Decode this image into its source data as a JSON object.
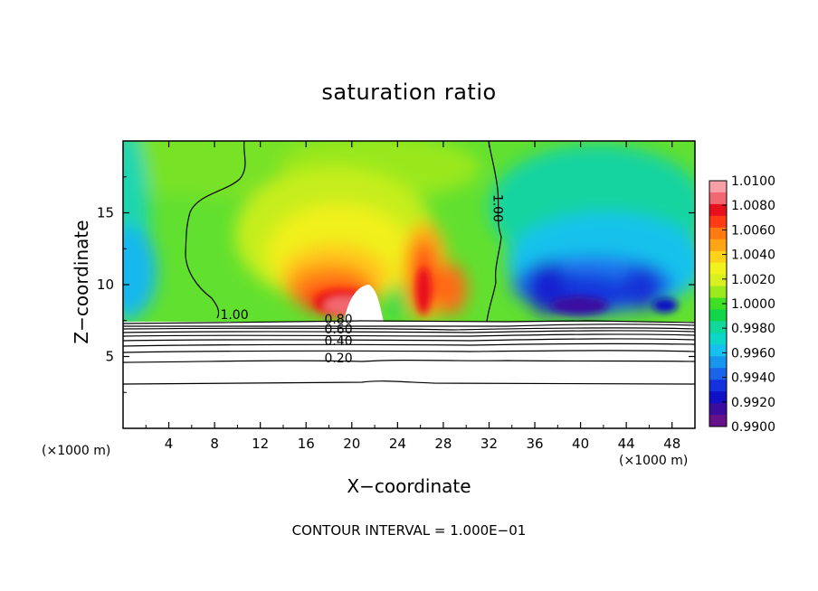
{
  "chart_data": {
    "type": "heatmap",
    "title": "saturation ratio",
    "xlabel": "X−coordinate",
    "ylabel": "Z−coordinate",
    "x_unit_label": "(×1000 m)",
    "xlim": [
      0,
      50
    ],
    "ylim": [
      0,
      20
    ],
    "x_ticks": [
      4,
      8,
      12,
      16,
      20,
      24,
      28,
      32,
      36,
      40,
      44,
      48
    ],
    "y_ticks": [
      5,
      10,
      15
    ],
    "colorbar": {
      "labels": [
        "1.0100",
        "1.0080",
        "1.0060",
        "1.0040",
        "1.0020",
        "1.0000",
        "0.9980",
        "0.9960",
        "0.9940",
        "0.9920",
        "0.9900"
      ],
      "colors": [
        "#f7a0a8",
        "#f26870",
        "#e8101c",
        "#ff3c14",
        "#ff7a10",
        "#ffa414",
        "#ffd21a",
        "#f2f21e",
        "#d8f020",
        "#9aea1e",
        "#3ee024",
        "#12d64a",
        "#10d89a",
        "#0cd6c8",
        "#14c0ee",
        "#1896ee",
        "#1a64ec",
        "#1432dc",
        "#1010c4",
        "#3a0ca0",
        "#66108a"
      ],
      "range": [
        0.99,
        1.01
      ]
    },
    "contour_labels": [
      {
        "text": "1.00",
        "x": 8.5,
        "y": 7.6
      },
      {
        "text": "1.00",
        "x": 32.4,
        "y": 16.3
      },
      {
        "text": "0.80",
        "x": 17.6,
        "y": 7.3
      },
      {
        "text": "0.60",
        "x": 17.6,
        "y": 6.6
      },
      {
        "text": "0.40",
        "x": 17.6,
        "y": 5.8
      },
      {
        "text": "0.20",
        "x": 17.6,
        "y": 4.6
      }
    ],
    "cloud_boundary_z": 7.5
  },
  "footer": "CONTOUR INTERVAL = 1.000E−01"
}
